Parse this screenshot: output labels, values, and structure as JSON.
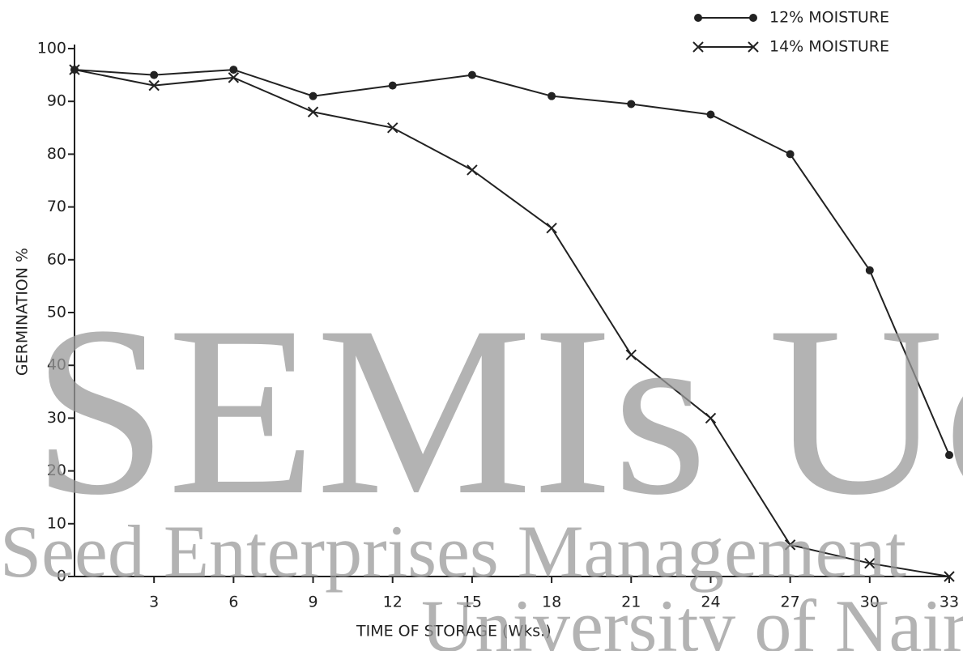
{
  "chart_data": {
    "type": "line",
    "xlabel": "TIME OF STORAGE (Wks.)",
    "ylabel": "GERMINATION %",
    "x": [
      0,
      3,
      6,
      9,
      12,
      15,
      18,
      21,
      24,
      27,
      30,
      33
    ],
    "series": [
      {
        "name": "12% MOISTURE",
        "color": "#222222",
        "marker": "circle",
        "values": [
          96,
          95,
          96,
          91,
          93,
          95,
          91,
          89.5,
          87.5,
          80,
          58,
          23
        ]
      },
      {
        "name": "14% MOISTURE",
        "color": "#222222",
        "marker": "x",
        "values": [
          96,
          93,
          94.5,
          88,
          85,
          77,
          66,
          42,
          30,
          6,
          2.5,
          0
        ]
      }
    ],
    "xlim": [
      0,
      33
    ],
    "xticks": [
      3,
      6,
      9,
      12,
      15,
      18,
      21,
      24,
      27,
      30,
      33
    ],
    "ylim": [
      0,
      100
    ],
    "yticks": [
      0,
      10,
      20,
      30,
      40,
      50,
      60,
      70,
      80,
      90,
      100
    ],
    "grid": false,
    "legend": "top-right",
    "annotations": [
      "SEMIs UoN",
      "Seed Enterprises Management",
      "University of Nairobi"
    ]
  }
}
